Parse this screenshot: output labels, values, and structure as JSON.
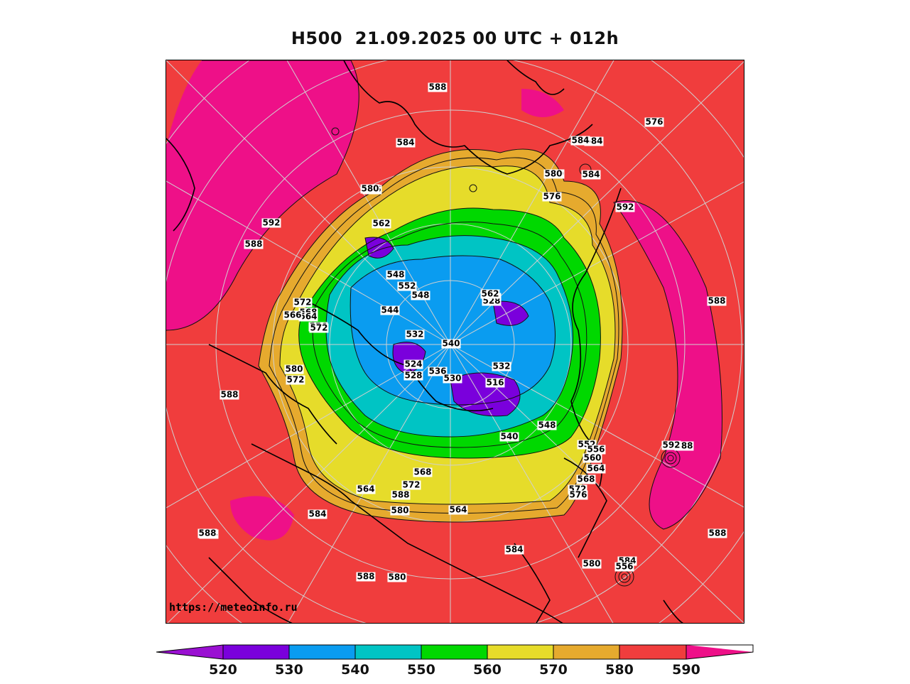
{
  "title": "H500  21.09.2025 00 UTC + 012h",
  "source_url": "https://meteoinfo.ru",
  "colors": {
    "below_520": "#9a10d2",
    "520_530": "#7a00dc",
    "530_540": "#0a9cf0",
    "540_550": "#00c4c4",
    "550_560": "#00d800",
    "560_570": "#e6dc2a",
    "570_580": "#e6aa2e",
    "580_590": "#f03d3d",
    "above_590": "#ee1088"
  },
  "colorbar": {
    "ticks": [
      "520",
      "530",
      "540",
      "550",
      "560",
      "570",
      "580",
      "590"
    ]
  },
  "contour_labels": [
    "588",
    "584",
    "580",
    "576",
    "592",
    "588",
    "584",
    "592",
    "588",
    "572",
    "568",
    "564",
    "580",
    "572",
    "566",
    "562",
    "556",
    "548",
    "552",
    "548",
    "544",
    "540",
    "532",
    "524",
    "528",
    "536",
    "530",
    "532",
    "516",
    "526",
    "528",
    "562",
    "540",
    "548",
    "552",
    "556",
    "560",
    "564",
    "568",
    "572",
    "576",
    "580",
    "588",
    "592",
    "588",
    "580",
    "584",
    "584",
    "580",
    "576",
    "564",
    "572",
    "568",
    "564",
    "580",
    "584",
    "588",
    "584",
    "588",
    "588",
    "584",
    "588",
    "580",
    "584",
    "556",
    "572",
    "566",
    "588"
  ]
}
